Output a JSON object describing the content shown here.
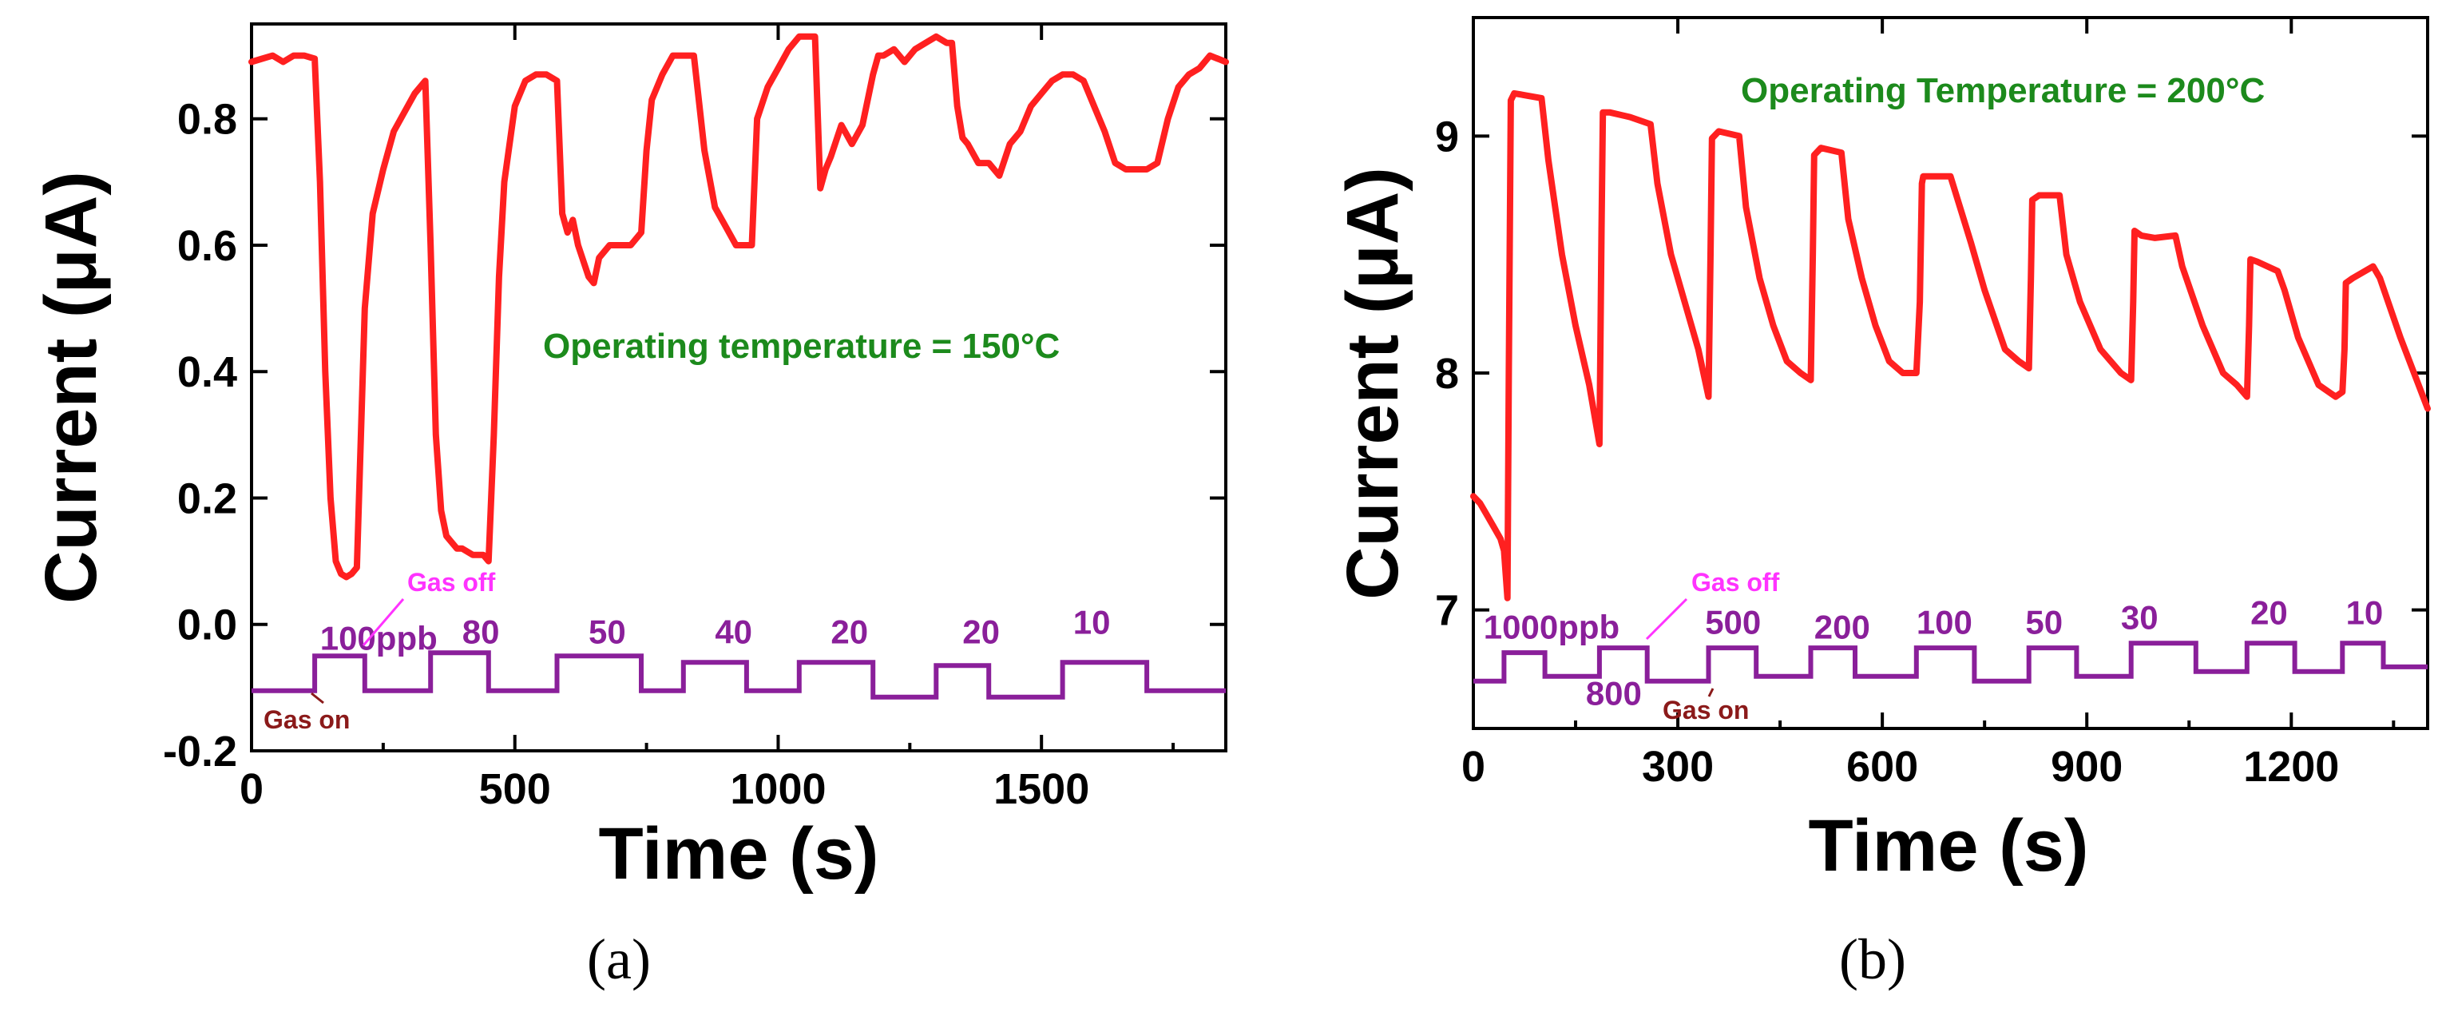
{
  "chart_data": [
    {
      "type": "line",
      "caption": "(a)",
      "xlabel": "Time (s)",
      "ylabel": "Current (μA)",
      "xlim": [
        0,
        1850
      ],
      "ylim": [
        -0.2,
        0.95
      ],
      "xticks": [
        0,
        500,
        1000,
        1500
      ],
      "xtick_labels": [
        "0",
        "500",
        "1000",
        "1500"
      ],
      "yticks": [
        -0.2,
        0.0,
        0.2,
        0.4,
        0.6,
        0.8
      ],
      "ytick_labels": [
        "-0.2",
        "0.0",
        "0.2",
        "0.4",
        "0.6",
        "0.8"
      ],
      "annotation_temperature": "Operating temperature = 150°C",
      "gas_off_label": "Gas off",
      "gas_on_label": "Gas on",
      "current_color": "#ff2020",
      "gas_color": "#8a1f9a",
      "current_series": {
        "name": "Current",
        "x": [
          0,
          20,
          40,
          60,
          80,
          100,
          120,
          130,
          140,
          150,
          160,
          170,
          180,
          190,
          200,
          215,
          230,
          250,
          270,
          290,
          310,
          330,
          340,
          350,
          360,
          370,
          380,
          390,
          400,
          420,
          440,
          450,
          460,
          470,
          480,
          500,
          520,
          540,
          560,
          580,
          590,
          600,
          610,
          620,
          640,
          650,
          660,
          680,
          700,
          720,
          740,
          750,
          760,
          780,
          800,
          820,
          840,
          860,
          880,
          900,
          920,
          940,
          950,
          960,
          980,
          1000,
          1020,
          1040,
          1060,
          1070,
          1080,
          1090,
          1100,
          1120,
          1140,
          1160,
          1180,
          1190,
          1200,
          1220,
          1240,
          1260,
          1280,
          1300,
          1320,
          1330,
          1340,
          1350,
          1360,
          1380,
          1400,
          1420,
          1440,
          1460,
          1480,
          1500,
          1520,
          1540,
          1560,
          1580,
          1600,
          1620,
          1640,
          1660,
          1680,
          1700,
          1720,
          1740,
          1760,
          1780,
          1800,
          1820,
          1850
        ],
        "y": [
          0.89,
          0.895,
          0.9,
          0.89,
          0.9,
          0.9,
          0.895,
          0.7,
          0.4,
          0.2,
          0.1,
          0.08,
          0.075,
          0.08,
          0.09,
          0.5,
          0.65,
          0.72,
          0.78,
          0.81,
          0.84,
          0.86,
          0.6,
          0.3,
          0.18,
          0.14,
          0.13,
          0.12,
          0.12,
          0.11,
          0.11,
          0.1,
          0.3,
          0.55,
          0.7,
          0.82,
          0.86,
          0.87,
          0.87,
          0.86,
          0.65,
          0.62,
          0.64,
          0.6,
          0.55,
          0.54,
          0.58,
          0.6,
          0.6,
          0.6,
          0.62,
          0.75,
          0.83,
          0.87,
          0.9,
          0.9,
          0.9,
          0.75,
          0.66,
          0.63,
          0.6,
          0.6,
          0.6,
          0.8,
          0.85,
          0.88,
          0.91,
          0.93,
          0.93,
          0.93,
          0.69,
          0.72,
          0.74,
          0.79,
          0.76,
          0.79,
          0.87,
          0.9,
          0.9,
          0.91,
          0.89,
          0.91,
          0.92,
          0.93,
          0.92,
          0.92,
          0.82,
          0.77,
          0.76,
          0.73,
          0.73,
          0.71,
          0.76,
          0.78,
          0.82,
          0.84,
          0.86,
          0.87,
          0.87,
          0.86,
          0.82,
          0.78,
          0.73,
          0.72,
          0.72,
          0.72,
          0.73,
          0.8,
          0.85,
          0.87,
          0.88,
          0.9,
          0.89
        ]
      },
      "gas_series": {
        "name": "Gas concentration",
        "steps": [
          {
            "from": 0,
            "to": 120,
            "level": -0.105
          },
          {
            "from": 120,
            "to": 215,
            "level": -0.05
          },
          {
            "from": 215,
            "to": 340,
            "level": -0.105
          },
          {
            "from": 340,
            "to": 450,
            "level": -0.045
          },
          {
            "from": 450,
            "to": 580,
            "level": -0.105
          },
          {
            "from": 580,
            "to": 740,
            "level": -0.05
          },
          {
            "from": 740,
            "to": 820,
            "level": -0.105
          },
          {
            "from": 820,
            "to": 940,
            "level": -0.06
          },
          {
            "from": 940,
            "to": 1040,
            "level": -0.105
          },
          {
            "from": 1040,
            "to": 1180,
            "level": -0.06
          },
          {
            "from": 1180,
            "to": 1300,
            "level": -0.115
          },
          {
            "from": 1300,
            "to": 1400,
            "level": -0.065
          },
          {
            "from": 1400,
            "to": 1540,
            "level": -0.115
          },
          {
            "from": 1540,
            "to": 1700,
            "level": -0.06
          },
          {
            "from": 1700,
            "to": 1850,
            "level": -0.105
          }
        ]
      },
      "concentration_labels": [
        {
          "text": "100ppb",
          "x": 130,
          "y": -0.04
        },
        {
          "text": "80",
          "x": 400,
          "y": -0.03
        },
        {
          "text": "50",
          "x": 640,
          "y": -0.03
        },
        {
          "text": "40",
          "x": 880,
          "y": -0.03
        },
        {
          "text": "20",
          "x": 1100,
          "y": -0.03
        },
        {
          "text": "20",
          "x": 1350,
          "y": -0.03
        },
        {
          "text": "10",
          "x": 1560,
          "y": -0.015
        }
      ]
    },
    {
      "type": "line",
      "caption": "(b)",
      "xlabel": "Time (s)",
      "ylabel": "Current (μA)",
      "xlim": [
        0,
        1400
      ],
      "ylim": [
        6.5,
        9.5
      ],
      "xticks": [
        0,
        300,
        600,
        900,
        1200
      ],
      "xtick_labels": [
        "0",
        "300",
        "600",
        "900",
        "1200"
      ],
      "yticks": [
        7,
        8,
        9
      ],
      "ytick_labels": [
        "7",
        "8",
        "9"
      ],
      "annotation_temperature": "Operating Temperature = 200°C",
      "gas_off_label": "Gas off",
      "gas_on_label": "Gas on",
      "current_color": "#ff2020",
      "gas_color": "#8a1f9a",
      "current_series": {
        "name": "Current",
        "x": [
          0,
          10,
          20,
          30,
          40,
          45,
          50,
          52,
          55,
          60,
          80,
          100,
          110,
          130,
          150,
          170,
          185,
          188,
          190,
          200,
          230,
          260,
          270,
          290,
          310,
          330,
          345,
          348,
          350,
          360,
          390,
          400,
          420,
          440,
          460,
          480,
          495,
          498,
          500,
          510,
          540,
          550,
          570,
          590,
          610,
          630,
          650,
          655,
          658,
          660,
          670,
          700,
          730,
          750,
          780,
          800,
          815,
          818,
          820,
          830,
          860,
          870,
          890,
          920,
          950,
          965,
          968,
          970,
          980,
          1000,
          1030,
          1040,
          1070,
          1100,
          1120,
          1135,
          1138,
          1140,
          1150,
          1180,
          1190,
          1210,
          1240,
          1265,
          1275,
          1278,
          1280,
          1290,
          1320,
          1330,
          1360,
          1400
        ],
        "y": [
          7.48,
          7.45,
          7.4,
          7.35,
          7.3,
          7.25,
          7.05,
          8.0,
          9.15,
          9.18,
          9.17,
          9.16,
          8.9,
          8.5,
          8.2,
          7.95,
          7.7,
          8.6,
          9.1,
          9.1,
          9.08,
          9.05,
          8.8,
          8.5,
          8.3,
          8.1,
          7.9,
          8.5,
          8.99,
          9.02,
          9.0,
          8.7,
          8.4,
          8.2,
          8.05,
          8.0,
          7.97,
          8.5,
          8.92,
          8.95,
          8.93,
          8.65,
          8.4,
          8.2,
          8.05,
          8.0,
          8.0,
          8.3,
          8.8,
          8.83,
          8.83,
          8.83,
          8.55,
          8.35,
          8.1,
          8.05,
          8.02,
          8.4,
          8.73,
          8.75,
          8.75,
          8.5,
          8.3,
          8.1,
          8.0,
          7.97,
          8.3,
          8.6,
          8.58,
          8.57,
          8.58,
          8.45,
          8.2,
          8.0,
          7.95,
          7.9,
          8.2,
          8.48,
          8.47,
          8.43,
          8.35,
          8.15,
          7.95,
          7.9,
          7.92,
          8.1,
          8.38,
          8.4,
          8.45,
          8.4,
          8.15,
          7.85
        ]
      },
      "gas_series": {
        "name": "Gas concentration",
        "steps": [
          {
            "from": 0,
            "to": 45,
            "level": 6.7
          },
          {
            "from": 45,
            "to": 105,
            "level": 6.82
          },
          {
            "from": 105,
            "to": 185,
            "level": 6.72
          },
          {
            "from": 185,
            "to": 255,
            "level": 6.84
          },
          {
            "from": 255,
            "to": 345,
            "level": 6.7
          },
          {
            "from": 345,
            "to": 415,
            "level": 6.84
          },
          {
            "from": 415,
            "to": 495,
            "level": 6.72
          },
          {
            "from": 495,
            "to": 560,
            "level": 6.84
          },
          {
            "from": 560,
            "to": 650,
            "level": 6.72
          },
          {
            "from": 650,
            "to": 735,
            "level": 6.84
          },
          {
            "from": 735,
            "to": 815,
            "level": 6.7
          },
          {
            "from": 815,
            "to": 885,
            "level": 6.84
          },
          {
            "from": 885,
            "to": 965,
            "level": 6.72
          },
          {
            "from": 965,
            "to": 1060,
            "level": 6.86
          },
          {
            "from": 1060,
            "to": 1135,
            "level": 6.74
          },
          {
            "from": 1135,
            "to": 1205,
            "level": 6.86
          },
          {
            "from": 1205,
            "to": 1275,
            "level": 6.74
          },
          {
            "from": 1275,
            "to": 1335,
            "level": 6.86
          },
          {
            "from": 1335,
            "to": 1400,
            "level": 6.76
          }
        ]
      },
      "concentration_labels": [
        {
          "text": "1000ppb",
          "x": 15,
          "y": 6.88
        },
        {
          "text": "500",
          "x": 340,
          "y": 6.9
        },
        {
          "text": "200",
          "x": 500,
          "y": 6.88
        },
        {
          "text": "100",
          "x": 650,
          "y": 6.9
        },
        {
          "text": "50",
          "x": 810,
          "y": 6.9
        },
        {
          "text": "30",
          "x": 950,
          "y": 6.92
        },
        {
          "text": "20",
          "x": 1140,
          "y": 6.94
        },
        {
          "text": "10",
          "x": 1280,
          "y": 6.94
        }
      ],
      "concentration_labels_below": [
        {
          "text": "800",
          "x": 165,
          "y": 6.6
        }
      ]
    }
  ]
}
